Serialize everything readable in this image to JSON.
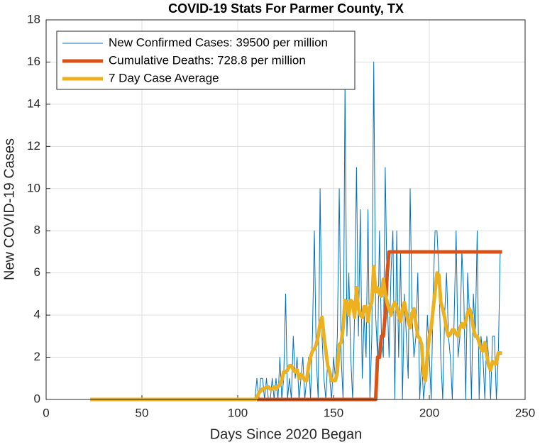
{
  "chart_data": {
    "type": "line",
    "title": "COVID-19 Stats For Parmer County, TX",
    "xlabel": "Days Since 2020 Began",
    "ylabel": "New COVID-19 Cases",
    "xlim": [
      0,
      250
    ],
    "xticks": [
      0,
      50,
      100,
      150,
      200,
      250
    ],
    "ylim": [
      0,
      18
    ],
    "yticks": [
      0,
      2,
      4,
      6,
      8,
      10,
      12,
      14,
      16,
      18
    ],
    "grid": true,
    "legend": "upper left",
    "x": [
      23,
      24,
      25,
      26,
      27,
      28,
      29,
      30,
      31,
      32,
      33,
      34,
      35,
      36,
      37,
      38,
      39,
      40,
      41,
      42,
      43,
      44,
      45,
      46,
      47,
      48,
      49,
      50,
      51,
      52,
      53,
      54,
      55,
      56,
      57,
      58,
      59,
      60,
      61,
      62,
      63,
      64,
      65,
      66,
      67,
      68,
      69,
      70,
      71,
      72,
      73,
      74,
      75,
      76,
      77,
      78,
      79,
      80,
      81,
      82,
      83,
      84,
      85,
      86,
      87,
      88,
      89,
      90,
      91,
      92,
      93,
      94,
      95,
      96,
      97,
      98,
      99,
      100,
      101,
      102,
      103,
      104,
      105,
      106,
      107,
      108,
      109,
      110,
      111,
      112,
      113,
      114,
      115,
      116,
      117,
      118,
      119,
      120,
      121,
      122,
      123,
      124,
      125,
      126,
      127,
      128,
      129,
      130,
      131,
      132,
      133,
      134,
      135,
      136,
      137,
      138,
      139,
      140,
      141,
      142,
      143,
      144,
      145,
      146,
      147,
      148,
      149,
      150,
      151,
      152,
      153,
      154,
      155,
      156,
      157,
      158,
      159,
      160,
      161,
      162,
      163,
      164,
      165,
      166,
      167,
      168,
      169,
      170,
      171,
      172,
      173,
      174,
      175,
      176,
      177,
      178,
      179,
      180,
      181,
      182,
      183,
      184,
      185,
      186,
      187,
      188,
      189,
      190,
      191,
      192,
      193,
      194,
      195,
      196,
      197,
      198,
      199,
      200,
      201,
      202,
      203,
      204,
      205,
      206,
      207,
      208,
      209,
      210,
      211,
      212,
      213,
      214,
      215,
      216,
      217,
      218,
      219,
      220,
      221,
      222,
      223,
      224,
      225,
      226,
      227,
      228,
      229,
      230,
      231,
      232,
      233,
      234,
      235,
      236,
      237,
      238
    ],
    "series": [
      {
        "name": "New Confirmed Cases: 39500 per million",
        "color": "#0072BD",
        "width": 1,
        "values": [
          0,
          0,
          0,
          0,
          0,
          0,
          0,
          0,
          0,
          0,
          0,
          0,
          0,
          0,
          0,
          0,
          0,
          0,
          0,
          0,
          0,
          0,
          0,
          0,
          0,
          0,
          0,
          0,
          0,
          0,
          0,
          0,
          0,
          0,
          0,
          0,
          0,
          0,
          0,
          0,
          0,
          0,
          0,
          0,
          0,
          0,
          0,
          0,
          0,
          0,
          0,
          0,
          0,
          0,
          0,
          0,
          0,
          0,
          0,
          0,
          0,
          0,
          0,
          0,
          0,
          0,
          0,
          0,
          0,
          0,
          0,
          0,
          0,
          0,
          0,
          0,
          0,
          0,
          0,
          0,
          0,
          0,
          0,
          0,
          0,
          0,
          0,
          1,
          0,
          1,
          1,
          0,
          1,
          0,
          0,
          1,
          0,
          1,
          0,
          2,
          0,
          1,
          5,
          0,
          1,
          0,
          3,
          1,
          2,
          0,
          1,
          2,
          0,
          1,
          2,
          0,
          3,
          8,
          2,
          0,
          10,
          3,
          1,
          0,
          2,
          1,
          0,
          2,
          1,
          3,
          10,
          2,
          0,
          15,
          3,
          6,
          2,
          0,
          4,
          11,
          3,
          9,
          1,
          4,
          2,
          9,
          0,
          3,
          16,
          4,
          2,
          8,
          3,
          2,
          11,
          5,
          2,
          6,
          8,
          0,
          8,
          2,
          7,
          0,
          5,
          3,
          1,
          10,
          4,
          2,
          3,
          6,
          0,
          2,
          0,
          1,
          4,
          2,
          0,
          5,
          8,
          8,
          6,
          2,
          0,
          4,
          6,
          3,
          2,
          0,
          4,
          8,
          2,
          3,
          7,
          5,
          0,
          6,
          4,
          0,
          5,
          3,
          8,
          0,
          3,
          2,
          0,
          3,
          2,
          0,
          3,
          3,
          0,
          2,
          7,
          7
        ]
      },
      {
        "name": "Cumulative Deaths: 728.8 per million",
        "color": "#D95319",
        "width": 5,
        "values": [
          null,
          null,
          null,
          null,
          null,
          null,
          null,
          null,
          null,
          null,
          null,
          null,
          null,
          null,
          null,
          null,
          null,
          null,
          null,
          null,
          null,
          null,
          null,
          null,
          null,
          null,
          null,
          null,
          null,
          null,
          null,
          null,
          null,
          null,
          null,
          null,
          null,
          null,
          null,
          null,
          null,
          null,
          null,
          null,
          null,
          null,
          null,
          null,
          null,
          null,
          null,
          null,
          null,
          null,
          null,
          null,
          null,
          null,
          null,
          null,
          null,
          null,
          null,
          null,
          null,
          null,
          null,
          null,
          null,
          null,
          null,
          null,
          null,
          null,
          null,
          null,
          null,
          null,
          null,
          null,
          null,
          null,
          null,
          null,
          null,
          null,
          null,
          0,
          0,
          0,
          0,
          0,
          0,
          0,
          0,
          0,
          0,
          0,
          0,
          0,
          0,
          0,
          0,
          0,
          0,
          0,
          0,
          0,
          0,
          0,
          0,
          0,
          0,
          0,
          0,
          0,
          0,
          0,
          0,
          0,
          0,
          0,
          0,
          0,
          0,
          0,
          0,
          0,
          0,
          0,
          0,
          0,
          0,
          0,
          0,
          0,
          0,
          0,
          0,
          0,
          0,
          0,
          0,
          0,
          0,
          0,
          0,
          0,
          0,
          0,
          2,
          2,
          3,
          3,
          4,
          6,
          7,
          7,
          7,
          7,
          7,
          7,
          7,
          7,
          7,
          7,
          7,
          7,
          7,
          7,
          7,
          7,
          7,
          7,
          7,
          7,
          7,
          7,
          7,
          7,
          7,
          7,
          7,
          7,
          7,
          7,
          7,
          7,
          7,
          7,
          7,
          7,
          7,
          7,
          7,
          7,
          7,
          7,
          7,
          7,
          7,
          7,
          7,
          7,
          7,
          7,
          7,
          7,
          7,
          7,
          7,
          7,
          7,
          7,
          7,
          7
        ]
      },
      {
        "name": "7 Day Case Average",
        "color": "#EDB120",
        "width": 5,
        "values": [
          0,
          0,
          0,
          0,
          0,
          0,
          0,
          0,
          0,
          0,
          0,
          0,
          0,
          0,
          0,
          0,
          0,
          0,
          0,
          0,
          0,
          0,
          0,
          0,
          0,
          0,
          0,
          0,
          0,
          0,
          0,
          0,
          0,
          0,
          0,
          0,
          0,
          0,
          0,
          0,
          0,
          0,
          0,
          0,
          0,
          0,
          0,
          0,
          0,
          0,
          0,
          0,
          0,
          0,
          0,
          0,
          0,
          0,
          0,
          0,
          0,
          0,
          0,
          0,
          0,
          0,
          0,
          0,
          0,
          0,
          0,
          0,
          0,
          0,
          0,
          0,
          0,
          0,
          0,
          0,
          0,
          0,
          0,
          0,
          0,
          0,
          0,
          0.1,
          0.3,
          0.4,
          0.5,
          0.5,
          0.6,
          0.6,
          0.5,
          0.5,
          0.6,
          0.5,
          0.6,
          0.7,
          0.9,
          1.3,
          1.3,
          1.4,
          1.6,
          1.6,
          1.4,
          1.3,
          1.4,
          1.0,
          1.2,
          1.1,
          0.9,
          0.9,
          1.6,
          2.0,
          2.3,
          2.4,
          2.6,
          3.0,
          3.6,
          3.9,
          3.0,
          2.3,
          1.6,
          1.3,
          0.9,
          0.9,
          0.9,
          1.3,
          2.6,
          2.7,
          3.4,
          4.7,
          4.6,
          4.0,
          4.7,
          4.6,
          3.9,
          5.3,
          4.3,
          4.0,
          3.9,
          4.4,
          4.4,
          3.7,
          4.4,
          4.6,
          6.3,
          5.1,
          5.3,
          5.0,
          4.9,
          5.7,
          5.0,
          4.6,
          4.3,
          4.0,
          4.4,
          4.6,
          4.4,
          4.0,
          3.7,
          4.3,
          4.6,
          4.1,
          3.7,
          3.4,
          4.1,
          4.3,
          3.6,
          3.0,
          2.9,
          2.6,
          1.2,
          0.9,
          2.1,
          3.0,
          3.4,
          4.3,
          5.1,
          6.0,
          5.9,
          4.6,
          4.3,
          3.9,
          3.3,
          3.0,
          3.1,
          3.3,
          3.3,
          3.1,
          3.0,
          3.4,
          3.6,
          3.4,
          3.7,
          4.1,
          4.3,
          4.0,
          3.4,
          3.0,
          3.0,
          2.7,
          2.4,
          2.3,
          2.7,
          2.1,
          1.6,
          1.4,
          1.8,
          1.7,
          1.7,
          2.2,
          2.2,
          2.2
        ]
      }
    ]
  }
}
